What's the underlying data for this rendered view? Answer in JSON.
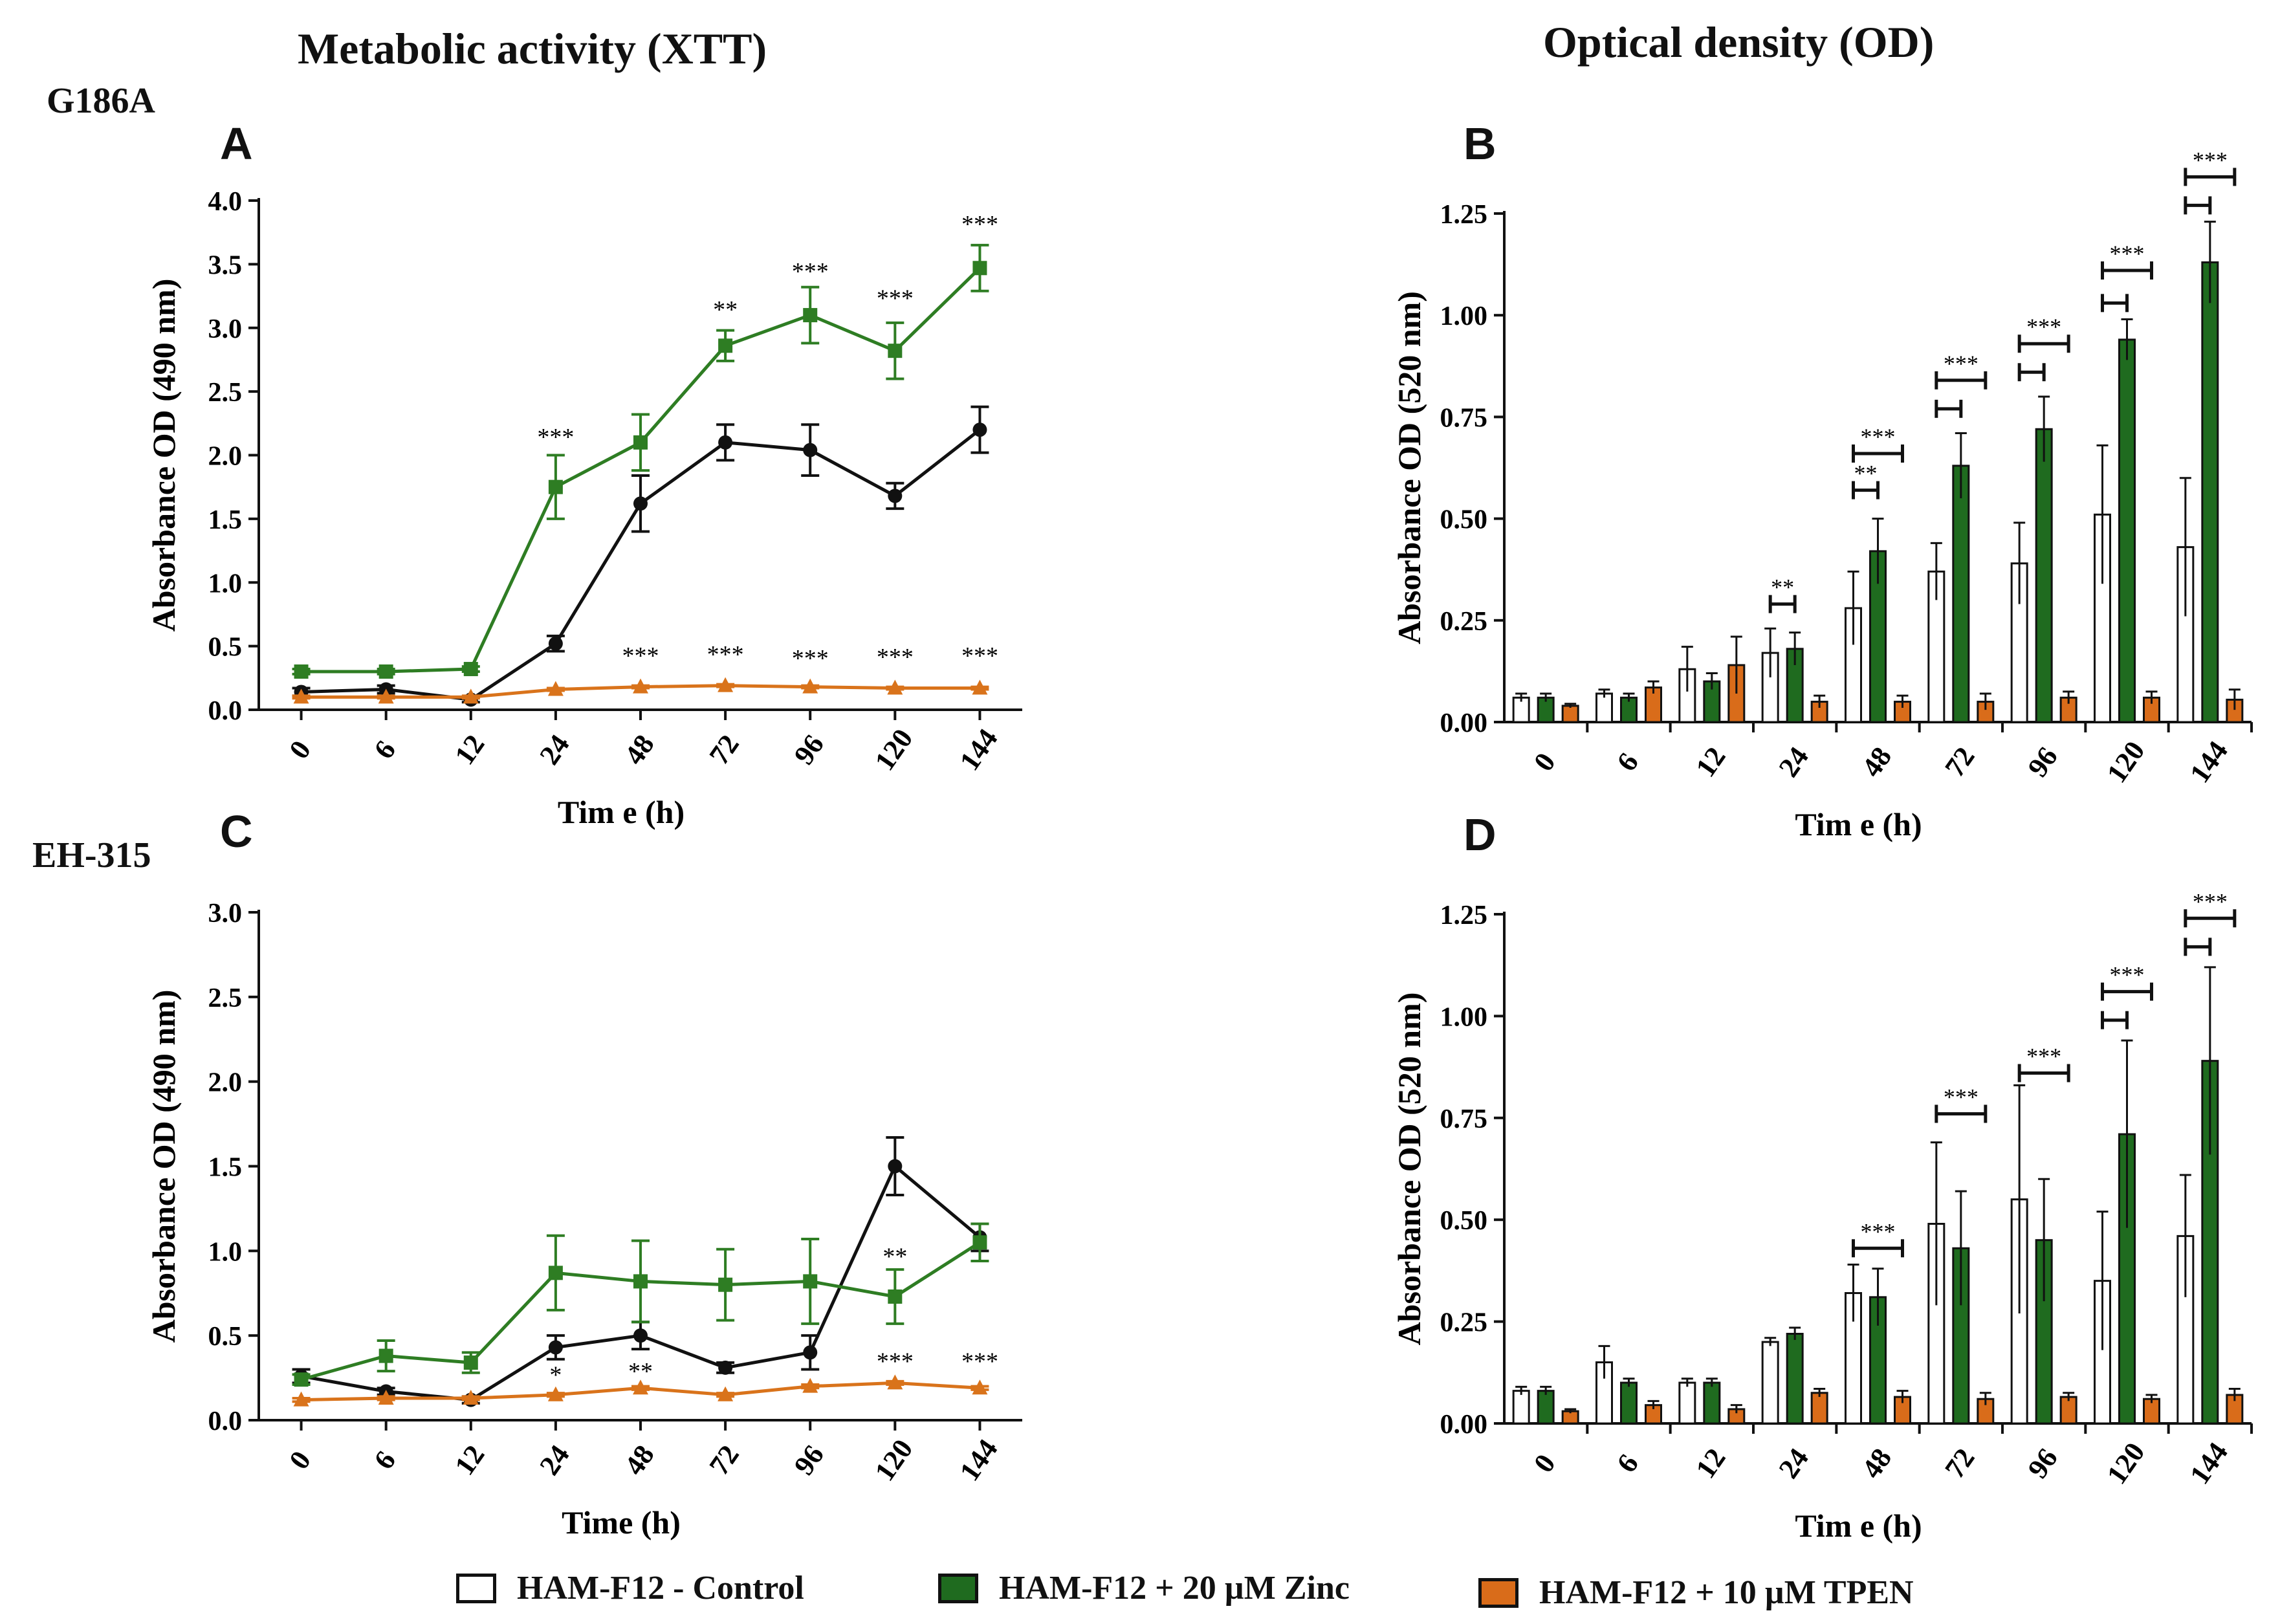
{
  "titles": {
    "left": "Metabolic activity (XTT)",
    "right": "Optical density (OD)"
  },
  "strains": {
    "top": "G186A",
    "bottom": "EH-315"
  },
  "colors": {
    "control": "#ffffff",
    "zinc": "#1f6b1f",
    "tpen": "#d96c1a",
    "control_line": "#111111",
    "zinc_line": "#2e7d23",
    "tpen_line": "#d9731b"
  },
  "legend": [
    {
      "label": "HAM-F12 - Control",
      "color": "#ffffff"
    },
    {
      "label": "HAM-F12 + 20 µM Zinc",
      "color": "#1f6b1f"
    },
    {
      "label": "HAM-F12 + 10 µM TPEN",
      "color": "#d96c1a"
    }
  ],
  "chart_data": [
    {
      "panel": "A",
      "type": "line",
      "ylabel": "Absorbance OD (490 nm)",
      "xlabel": "Tim e (h)",
      "categories": [
        "0",
        "6",
        "12",
        "24",
        "48",
        "72",
        "96",
        "120",
        "144"
      ],
      "ylim": [
        0,
        4.0
      ],
      "yticks": [
        0,
        0.5,
        1.0,
        1.5,
        2.0,
        2.5,
        3.0,
        3.5,
        4.0
      ],
      "ytick_labels": [
        "0.0",
        "0.5",
        "1.0",
        "1.5",
        "2.0",
        "2.5",
        "3.0",
        "3.5",
        "4.0"
      ],
      "series": [
        {
          "name": "HAM-F12 - Control",
          "marker": "circle",
          "values": [
            0.14,
            0.16,
            0.08,
            0.52,
            1.62,
            2.1,
            2.04,
            1.68,
            2.2
          ],
          "errors": [
            0.03,
            0.03,
            0.02,
            0.06,
            0.22,
            0.14,
            0.2,
            0.1,
            0.18
          ]
        },
        {
          "name": "HAM-F12 + 20 µM Zinc",
          "marker": "square",
          "values": [
            0.3,
            0.3,
            0.32,
            1.75,
            2.1,
            2.86,
            3.1,
            2.82,
            3.47
          ],
          "errors": [
            0.02,
            0.02,
            0.02,
            0.25,
            0.22,
            0.12,
            0.22,
            0.22,
            0.18
          ]
        },
        {
          "name": "HAM-F12 + 10 µM TPEN",
          "marker": "triangle",
          "values": [
            0.1,
            0.1,
            0.1,
            0.16,
            0.18,
            0.19,
            0.18,
            0.17,
            0.17
          ],
          "errors": [
            0.01,
            0.01,
            0.01,
            0.01,
            0.01,
            0.01,
            0.01,
            0.01,
            0.01
          ]
        }
      ],
      "annotations": [
        {
          "x": "24",
          "y": 2.08,
          "text": "***"
        },
        {
          "x": "72",
          "y": 3.08,
          "text": "**"
        },
        {
          "x": "96",
          "y": 3.38,
          "text": "***"
        },
        {
          "x": "120",
          "y": 3.17,
          "text": "***"
        },
        {
          "x": "144",
          "y": 3.75,
          "text": "***"
        },
        {
          "x": "48",
          "y": 0.36,
          "text": "***"
        },
        {
          "x": "72",
          "y": 0.37,
          "text": "***"
        },
        {
          "x": "96",
          "y": 0.34,
          "text": "***"
        },
        {
          "x": "120",
          "y": 0.35,
          "text": "***"
        },
        {
          "x": "144",
          "y": 0.36,
          "text": "***"
        }
      ]
    },
    {
      "panel": "B",
      "type": "bar",
      "ylabel": "Absorbance OD (520 nm)",
      "xlabel": "Tim e (h)",
      "categories": [
        "0",
        "6",
        "12",
        "24",
        "48",
        "72",
        "96",
        "120",
        "144"
      ],
      "ylim": [
        0,
        1.25
      ],
      "yticks": [
        0,
        0.25,
        0.5,
        0.75,
        1.0,
        1.25
      ],
      "ytick_labels": [
        "0.00",
        "0.25",
        "0.50",
        "0.75",
        "1.00",
        "1.25"
      ],
      "series": [
        {
          "name": "HAM-F12 - Control",
          "values": [
            0.06,
            0.07,
            0.13,
            0.17,
            0.28,
            0.37,
            0.39,
            0.51,
            0.43
          ],
          "errors": [
            0.01,
            0.01,
            0.055,
            0.06,
            0.09,
            0.07,
            0.1,
            0.17,
            0.17
          ]
        },
        {
          "name": "HAM-F12 + 20 µM Zinc",
          "values": [
            0.06,
            0.06,
            0.1,
            0.18,
            0.42,
            0.63,
            0.72,
            0.94,
            1.13
          ],
          "errors": [
            0.01,
            0.01,
            0.02,
            0.04,
            0.08,
            0.08,
            0.08,
            0.05,
            0.1
          ]
        },
        {
          "name": "HAM-F12 + 10 µM TPEN",
          "values": [
            0.04,
            0.085,
            0.14,
            0.05,
            0.05,
            0.05,
            0.06,
            0.06,
            0.055
          ],
          "errors": [
            0.005,
            0.015,
            0.07,
            0.015,
            0.015,
            0.02,
            0.015,
            0.015,
            0.025
          ]
        }
      ],
      "comparisons": [
        {
          "category": "24",
          "from": 0,
          "to": 1,
          "y": 0.29,
          "text": "**"
        },
        {
          "category": "48",
          "from": 0,
          "to": 1,
          "y": 0.57,
          "text": "**"
        },
        {
          "category": "48",
          "from": 0,
          "to": 2,
          "y": 0.66,
          "text": "***"
        },
        {
          "category": "72",
          "from": 0,
          "to": 1,
          "y": 0.77,
          "text": ""
        },
        {
          "category": "72",
          "from": 0,
          "to": 2,
          "y": 0.84,
          "text": "***"
        },
        {
          "category": "96",
          "from": 0,
          "to": 1,
          "y": 0.86,
          "text": ""
        },
        {
          "category": "96",
          "from": 0,
          "to": 2,
          "y": 0.93,
          "text": "***"
        },
        {
          "category": "120",
          "from": 0,
          "to": 1,
          "y": 1.03,
          "text": ""
        },
        {
          "category": "120",
          "from": 0,
          "to": 2,
          "y": 1.11,
          "text": "***"
        },
        {
          "category": "144",
          "from": 0,
          "to": 1,
          "y": 1.27,
          "text": ""
        },
        {
          "category": "144",
          "from": 0,
          "to": 2,
          "y": 1.34,
          "text": "***"
        }
      ]
    },
    {
      "panel": "C",
      "type": "line",
      "ylabel": "Absorbance OD (490 nm)",
      "xlabel": "Time (h)",
      "categories": [
        "0",
        "6",
        "12",
        "24",
        "48",
        "72",
        "96",
        "120",
        "144"
      ],
      "ylim": [
        0,
        3.0
      ],
      "yticks": [
        0,
        0.5,
        1.0,
        1.5,
        2.0,
        2.5,
        3.0
      ],
      "ytick_labels": [
        "0.0",
        "0.5",
        "1.0",
        "1.5",
        "2.0",
        "2.5",
        "3.0"
      ],
      "series": [
        {
          "name": "HAM-F12 - Control",
          "marker": "circle",
          "values": [
            0.26,
            0.17,
            0.12,
            0.43,
            0.5,
            0.31,
            0.4,
            1.5,
            1.08
          ],
          "errors": [
            0.04,
            0.02,
            0.02,
            0.07,
            0.08,
            0.03,
            0.1,
            0.17,
            0.08
          ]
        },
        {
          "name": "HAM-F12 + 20 µM Zinc",
          "marker": "square",
          "values": [
            0.24,
            0.38,
            0.34,
            0.87,
            0.82,
            0.8,
            0.82,
            0.73,
            1.05
          ],
          "errors": [
            0.03,
            0.09,
            0.06,
            0.22,
            0.24,
            0.21,
            0.25,
            0.16,
            0.11
          ]
        },
        {
          "name": "HAM-F12 + 10 µM TPEN",
          "marker": "triangle",
          "values": [
            0.12,
            0.13,
            0.13,
            0.15,
            0.19,
            0.15,
            0.2,
            0.22,
            0.19
          ],
          "errors": [
            0.01,
            0.01,
            0.01,
            0.01,
            0.01,
            0.01,
            0.01,
            0.01,
            0.01
          ]
        }
      ],
      "annotations": [
        {
          "x": "120",
          "y": 0.92,
          "text": "**"
        },
        {
          "x": "24",
          "y": 0.22,
          "text": "*"
        },
        {
          "x": "48",
          "y": 0.24,
          "text": "**"
        },
        {
          "x": "120",
          "y": 0.3,
          "text": "***"
        },
        {
          "x": "144",
          "y": 0.3,
          "text": "***"
        }
      ]
    },
    {
      "panel": "D",
      "type": "bar",
      "ylabel": "Absorbance OD (520 nm)",
      "xlabel": "Tim e (h)",
      "categories": [
        "0",
        "6",
        "12",
        "24",
        "48",
        "72",
        "96",
        "120",
        "144"
      ],
      "ylim": [
        0,
        1.25
      ],
      "yticks": [
        0,
        0.25,
        0.5,
        0.75,
        1.0,
        1.25
      ],
      "ytick_labels": [
        "0.00",
        "0.25",
        "0.50",
        "0.75",
        "1.00",
        "1.25"
      ],
      "series": [
        {
          "name": "HAM-F12 - Control",
          "values": [
            0.08,
            0.15,
            0.1,
            0.2,
            0.32,
            0.49,
            0.55,
            0.35,
            0.46
          ],
          "errors": [
            0.01,
            0.04,
            0.01,
            0.01,
            0.07,
            0.2,
            0.28,
            0.17,
            0.15
          ]
        },
        {
          "name": "HAM-F12 + 20 µM Zinc",
          "values": [
            0.08,
            0.1,
            0.1,
            0.22,
            0.31,
            0.43,
            0.45,
            0.71,
            0.89
          ],
          "errors": [
            0.01,
            0.01,
            0.01,
            0.015,
            0.07,
            0.14,
            0.15,
            0.23,
            0.23
          ]
        },
        {
          "name": "HAM-F12 + 10 µM TPEN",
          "values": [
            0.03,
            0.045,
            0.035,
            0.075,
            0.065,
            0.06,
            0.065,
            0.06,
            0.07
          ],
          "errors": [
            0.005,
            0.01,
            0.01,
            0.01,
            0.015,
            0.015,
            0.01,
            0.01,
            0.015
          ]
        }
      ],
      "comparisons": [
        {
          "category": "48",
          "from": 0,
          "to": 2,
          "y": 0.43,
          "text": "***"
        },
        {
          "category": "72",
          "from": 0,
          "to": 2,
          "y": 0.76,
          "text": "***"
        },
        {
          "category": "96",
          "from": 0,
          "to": 2,
          "y": 0.86,
          "text": "***"
        },
        {
          "category": "120",
          "from": 0,
          "to": 1,
          "y": 0.99,
          "text": ""
        },
        {
          "category": "120",
          "from": 0,
          "to": 2,
          "y": 1.06,
          "text": "***"
        },
        {
          "category": "144",
          "from": 0,
          "to": 1,
          "y": 1.17,
          "text": ""
        },
        {
          "category": "144",
          "from": 0,
          "to": 2,
          "y": 1.24,
          "text": "***"
        }
      ]
    }
  ]
}
